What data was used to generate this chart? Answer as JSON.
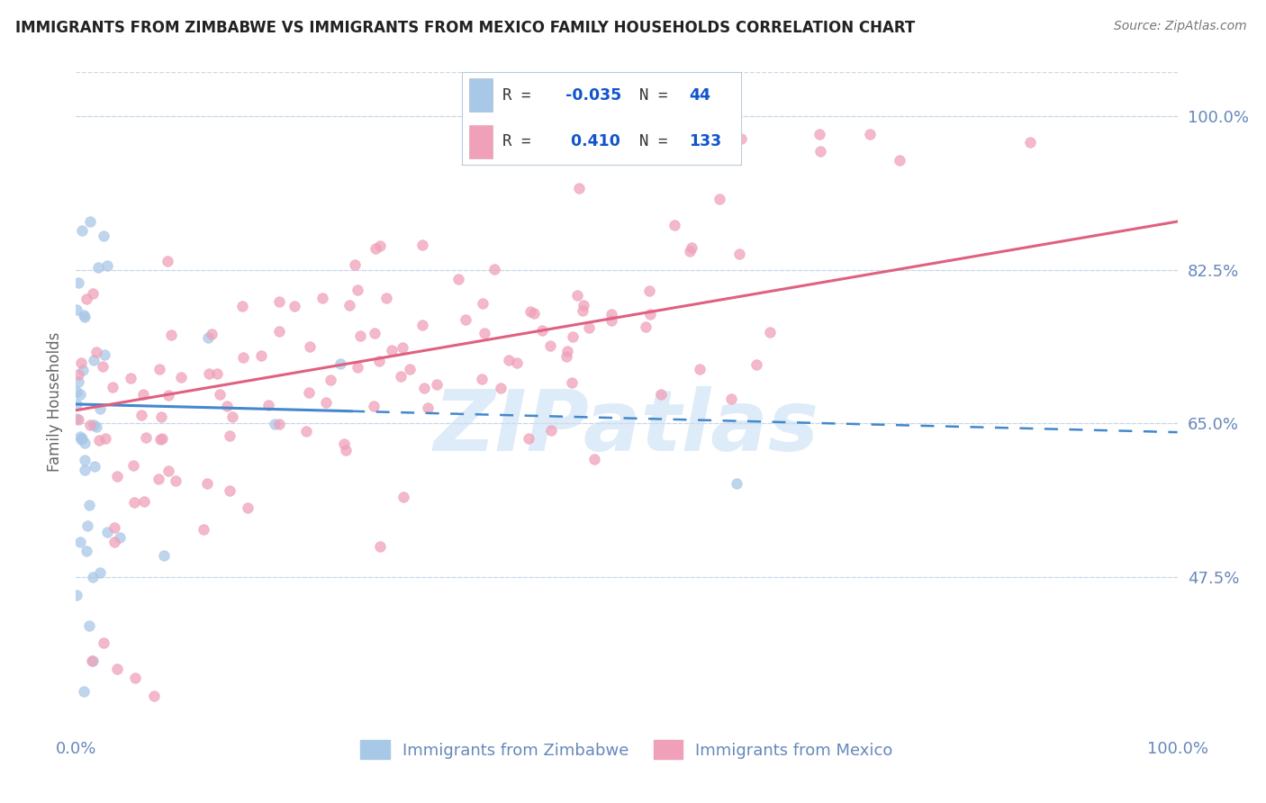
{
  "title": "IMMIGRANTS FROM ZIMBABWE VS IMMIGRANTS FROM MEXICO FAMILY HOUSEHOLDS CORRELATION CHART",
  "source": "Source: ZipAtlas.com",
  "ylabel": "Family Households",
  "xlabel": "",
  "xlim": [
    0.0,
    1.0
  ],
  "ylim": [
    0.3,
    1.05
  ],
  "yticks": [
    0.475,
    0.65,
    0.825,
    1.0
  ],
  "ytick_labels": [
    "47.5%",
    "65.0%",
    "82.5%",
    "100.0%"
  ],
  "xticks": [
    0.0,
    0.25,
    0.5,
    0.75,
    1.0
  ],
  "xtick_labels": [
    "0.0%",
    "",
    "",
    "",
    "100.0%"
  ],
  "blue_color": "#a8c8e8",
  "pink_color": "#f0a0b8",
  "blue_line_color": "#4488cc",
  "pink_line_color": "#e06080",
  "axis_color": "#6688bb",
  "legend_R_color": "#1155cc",
  "R_blue": -0.035,
  "N_blue": 44,
  "R_pink": 0.41,
  "N_pink": 133,
  "watermark": "ZIPatlas",
  "watermark_color": "#c8dff5",
  "background_color": "#ffffff",
  "grid_color": "#c8d8e8",
  "title_color": "#222222",
  "blue_line_start_y": 0.672,
  "blue_line_end_y": 0.64,
  "pink_line_start_y": 0.665,
  "pink_line_end_y": 0.88
}
